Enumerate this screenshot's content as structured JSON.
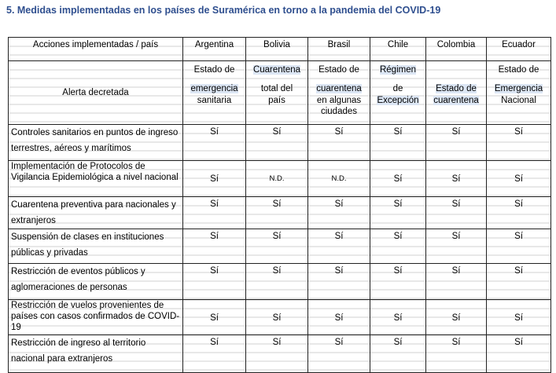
{
  "title": "5.  Medidas implementadas en los países de Suramérica en torno a la pandemia del COVID-19",
  "header": {
    "actions": "Acciones implementadas / país",
    "countries": [
      "Argentina",
      "Bolivia",
      "Brasil",
      "Chile",
      "Colombia",
      "Ecuador"
    ]
  },
  "alert": {
    "label": "Alerta decretada",
    "values": [
      [
        "Estado de",
        "emergencia",
        "sanitaria"
      ],
      [
        "Cuarentena",
        "total del",
        "país"
      ],
      [
        "Estado de",
        "cuarentena",
        "en algunas ciudades"
      ],
      [
        "Régimen",
        "de",
        "Excepción"
      ],
      [
        "",
        "Estado de",
        "cuarentena"
      ],
      [
        "Estado de",
        "Emergencia",
        "Nacional"
      ]
    ]
  },
  "rows": [
    {
      "label": "Controles sanitarios en puntos de ingreso terrestres, aéreos y marítimos",
      "values": [
        "Sí",
        "Sí",
        "Sí",
        "Sí",
        "Sí",
        "Sí"
      ]
    },
    {
      "label": "Implementación de Protocolos de Vigilancia Epidemiológica a nivel nacional",
      "values": [
        "Sí",
        "N.D.",
        "N.D.",
        "Sí",
        "Sí",
        "Sí"
      ]
    },
    {
      "label": "Cuarentena preventiva para nacionales y extranjeros",
      "values": [
        "Sí",
        "Sí",
        "Sí",
        "Sí",
        "Sí",
        "Sí"
      ]
    },
    {
      "label": "Suspensión de clases en instituciones públicas y privadas",
      "values": [
        "Sí",
        "Sí",
        "Sí",
        "Sí",
        "Sí",
        "Sí"
      ]
    },
    {
      "label": "Restricción de eventos públicos y aglomeraciones de personas",
      "values": [
        "Sí",
        "Sí",
        "Sí",
        "Sí",
        "Sí",
        "Sí"
      ]
    },
    {
      "label": "Restricción de vuelos provenientes de países con casos confirmados de COVID-19",
      "values": [
        "Sí",
        "Sí",
        "Sí",
        "Sí",
        "Sí",
        "Sí"
      ]
    },
    {
      "label": "Restricción de ingreso al territorio nacional para extranjeros",
      "values": [
        "Sí",
        "Sí",
        "Sí",
        "Sí",
        "Sí",
        "Sí"
      ]
    }
  ]
}
